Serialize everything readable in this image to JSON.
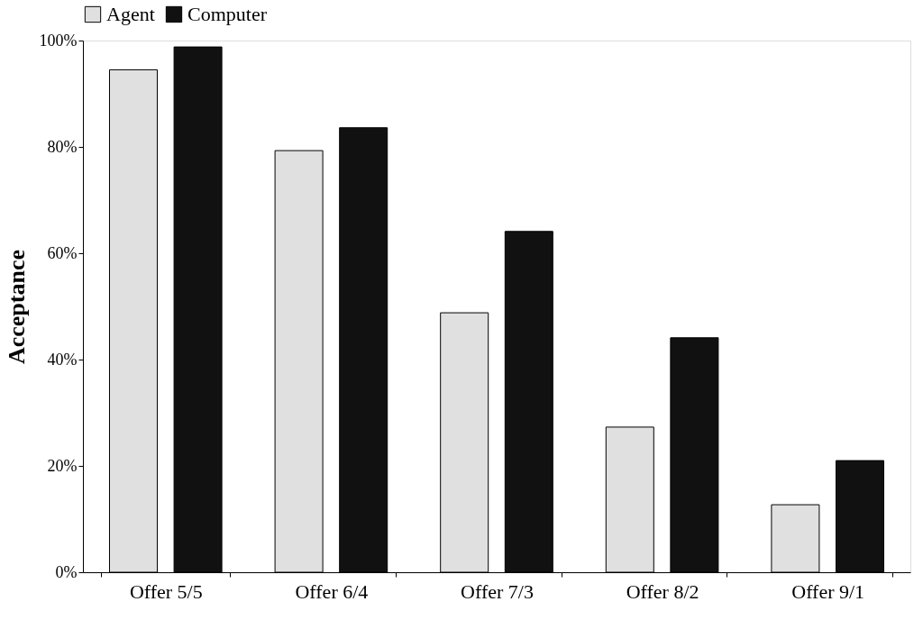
{
  "chart_data": {
    "type": "bar",
    "ylabel": "Acceptance",
    "categories": [
      "Offer 5/5",
      "Offer 6/4",
      "Offer 7/3",
      "Offer 8/2",
      "Offer 9/1"
    ],
    "series": [
      {
        "name": "Agent",
        "color": "#e0e0e0",
        "values": [
          94.5,
          79.3,
          48.8,
          27.3,
          12.7
        ]
      },
      {
        "name": "Computer",
        "color": "#111111",
        "values": [
          98.8,
          83.6,
          64.1,
          44.1,
          21.0
        ]
      }
    ],
    "ylim": [
      0,
      100
    ],
    "yticks": [
      {
        "value": 0,
        "label": "0%"
      },
      {
        "value": 20,
        "label": "20%"
      },
      {
        "value": 40,
        "label": "40%"
      },
      {
        "value": 60,
        "label": "60%"
      },
      {
        "value": 80,
        "label": "80%"
      },
      {
        "value": 100,
        "label": "100%"
      }
    ],
    "grid": false,
    "legend": "top"
  }
}
